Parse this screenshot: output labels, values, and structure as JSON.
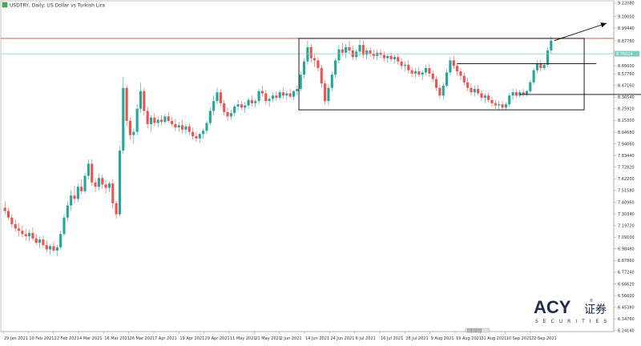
{
  "window": {
    "title": "USDTRY, Daily: US Dollar vs Turkish Lira"
  },
  "logo": {
    "main": "ACY",
    "cn": "证券",
    "sub": "SECURITIES",
    "registered": "®"
  },
  "scrollbar_label": "|||||||||||",
  "colors": {
    "bull": "#26a69a",
    "bear": "#ef5350",
    "resistance": "#e53935",
    "current_price": "#80cbc4",
    "box": "#000000"
  },
  "chart_data": {
    "type": "candlestick",
    "title": "USDTRY, Daily: US Dollar vs Turkish Lira",
    "x_tick_labels": [
      "29 Jan 2021",
      "10 Feb 2021",
      "22 Feb 2021",
      "4 Mar 2021",
      "16 Mar 2021",
      "26 Mar 2021",
      "7 Apr 2021",
      "19 Apr 2021",
      "29 Apr 2021",
      "11 May 2021",
      "21 May 2021",
      "2 Jun 2021",
      "14 Jun 2021",
      "24 Jun 2021",
      "6 Jul 2021",
      "16 Jul 2021",
      "28 Jul 2021",
      "9 Aug 2021",
      "19 Aug 2021",
      "31 Aug 2021",
      "10 Sep 2021",
      "22 Sep 2021"
    ],
    "y_tick_labels": [
      "9.22080",
      "9.10000",
      "8.99440",
      "8.87780",
      "8.76024",
      "8.65000",
      "8.57760",
      "8.47160",
      "8.36540",
      "8.25920",
      "8.15300",
      "8.04680",
      "7.94060",
      "7.83440",
      "7.72820",
      "7.62200",
      "7.51580",
      "7.40960",
      "7.30340",
      "7.19720",
      "7.09100",
      "6.98480",
      "6.87860",
      "6.77240",
      "6.66620",
      "6.56000",
      "6.45380",
      "6.34760",
      "6.24140"
    ],
    "ylim": [
      6.24,
      9.22
    ],
    "resistance_level": {
      "label": "8.90000",
      "value": 8.9
    },
    "current_price": {
      "label": "8.76024",
      "value": 8.76
    },
    "range_box": {
      "from_index": 85,
      "to_index": 166,
      "top": 8.9,
      "bottom": 8.25
    },
    "annotation_lines": [
      {
        "from_index": 130,
        "to_index": 170,
        "value": 8.67
      },
      {
        "from_index": 148,
        "to_index": 195,
        "value": 8.39
      }
    ],
    "candles": [
      {
        "o": 7.36,
        "h": 7.42,
        "l": 7.3,
        "c": 7.33
      },
      {
        "o": 7.33,
        "h": 7.36,
        "l": 7.25,
        "c": 7.27
      },
      {
        "o": 7.27,
        "h": 7.3,
        "l": 7.18,
        "c": 7.21
      },
      {
        "o": 7.21,
        "h": 7.25,
        "l": 7.14,
        "c": 7.17
      },
      {
        "o": 7.17,
        "h": 7.22,
        "l": 7.1,
        "c": 7.15
      },
      {
        "o": 7.15,
        "h": 7.2,
        "l": 7.09,
        "c": 7.12
      },
      {
        "o": 7.12,
        "h": 7.17,
        "l": 7.06,
        "c": 7.1
      },
      {
        "o": 7.1,
        "h": 7.16,
        "l": 7.05,
        "c": 7.13
      },
      {
        "o": 7.13,
        "h": 7.18,
        "l": 7.06,
        "c": 7.08
      },
      {
        "o": 7.08,
        "h": 7.12,
        "l": 7.02,
        "c": 7.04
      },
      {
        "o": 7.04,
        "h": 7.1,
        "l": 6.99,
        "c": 7.07
      },
      {
        "o": 7.07,
        "h": 7.11,
        "l": 7.0,
        "c": 7.02
      },
      {
        "o": 7.02,
        "h": 7.06,
        "l": 6.95,
        "c": 6.98
      },
      {
        "o": 6.98,
        "h": 7.03,
        "l": 6.93,
        "c": 7.01
      },
      {
        "o": 7.01,
        "h": 7.05,
        "l": 6.95,
        "c": 6.97
      },
      {
        "o": 6.97,
        "h": 7.02,
        "l": 6.92,
        "c": 7.0
      },
      {
        "o": 7.0,
        "h": 7.15,
        "l": 6.98,
        "c": 7.12
      },
      {
        "o": 7.12,
        "h": 7.3,
        "l": 7.1,
        "c": 7.27
      },
      {
        "o": 7.27,
        "h": 7.42,
        "l": 7.24,
        "c": 7.38
      },
      {
        "o": 7.38,
        "h": 7.52,
        "l": 7.33,
        "c": 7.47
      },
      {
        "o": 7.47,
        "h": 7.56,
        "l": 7.4,
        "c": 7.44
      },
      {
        "o": 7.44,
        "h": 7.58,
        "l": 7.41,
        "c": 7.55
      },
      {
        "o": 7.55,
        "h": 7.62,
        "l": 7.48,
        "c": 7.51
      },
      {
        "o": 7.51,
        "h": 7.68,
        "l": 7.49,
        "c": 7.65
      },
      {
        "o": 7.65,
        "h": 7.8,
        "l": 7.62,
        "c": 7.76
      },
      {
        "o": 7.76,
        "h": 7.8,
        "l": 7.56,
        "c": 7.59
      },
      {
        "o": 7.59,
        "h": 7.63,
        "l": 7.5,
        "c": 7.55
      },
      {
        "o": 7.55,
        "h": 7.67,
        "l": 7.52,
        "c": 7.63
      },
      {
        "o": 7.63,
        "h": 7.66,
        "l": 7.53,
        "c": 7.57
      },
      {
        "o": 7.57,
        "h": 7.61,
        "l": 7.49,
        "c": 7.54
      },
      {
        "o": 7.54,
        "h": 7.6,
        "l": 7.5,
        "c": 7.58
      },
      {
        "o": 7.58,
        "h": 7.62,
        "l": 7.35,
        "c": 7.4
      },
      {
        "o": 7.4,
        "h": 7.42,
        "l": 7.26,
        "c": 7.3
      },
      {
        "o": 7.3,
        "h": 7.92,
        "l": 7.28,
        "c": 7.88
      },
      {
        "o": 7.88,
        "h": 8.55,
        "l": 7.85,
        "c": 8.45
      },
      {
        "o": 8.45,
        "h": 8.48,
        "l": 8.1,
        "c": 8.15
      },
      {
        "o": 8.15,
        "h": 8.18,
        "l": 7.98,
        "c": 8.02
      },
      {
        "o": 8.02,
        "h": 8.08,
        "l": 7.94,
        "c": 8.05
      },
      {
        "o": 8.05,
        "h": 8.3,
        "l": 8.02,
        "c": 8.26
      },
      {
        "o": 8.26,
        "h": 8.5,
        "l": 8.22,
        "c": 8.42
      },
      {
        "o": 8.42,
        "h": 8.45,
        "l": 8.2,
        "c": 8.24
      },
      {
        "o": 8.24,
        "h": 8.28,
        "l": 8.08,
        "c": 8.12
      },
      {
        "o": 8.12,
        "h": 8.2,
        "l": 8.05,
        "c": 8.18
      },
      {
        "o": 8.18,
        "h": 8.22,
        "l": 8.1,
        "c": 8.13
      },
      {
        "o": 8.13,
        "h": 8.19,
        "l": 8.09,
        "c": 8.16
      },
      {
        "o": 8.16,
        "h": 8.2,
        "l": 8.11,
        "c": 8.14
      },
      {
        "o": 8.14,
        "h": 8.21,
        "l": 8.12,
        "c": 8.19
      },
      {
        "o": 8.19,
        "h": 8.23,
        "l": 8.13,
        "c": 8.15
      },
      {
        "o": 8.15,
        "h": 8.18,
        "l": 8.1,
        "c": 8.12
      },
      {
        "o": 8.12,
        "h": 8.17,
        "l": 8.06,
        "c": 8.09
      },
      {
        "o": 8.09,
        "h": 8.14,
        "l": 8.05,
        "c": 8.11
      },
      {
        "o": 8.11,
        "h": 8.16,
        "l": 8.04,
        "c": 8.07
      },
      {
        "o": 8.07,
        "h": 8.12,
        "l": 8.03,
        "c": 8.1
      },
      {
        "o": 8.1,
        "h": 8.13,
        "l": 8.02,
        "c": 8.05
      },
      {
        "o": 8.05,
        "h": 8.09,
        "l": 7.98,
        "c": 8.01
      },
      {
        "o": 8.01,
        "h": 8.05,
        "l": 7.96,
        "c": 7.99
      },
      {
        "o": 7.99,
        "h": 8.04,
        "l": 7.95,
        "c": 8.03
      },
      {
        "o": 8.03,
        "h": 8.08,
        "l": 7.99,
        "c": 8.06
      },
      {
        "o": 8.06,
        "h": 8.15,
        "l": 8.03,
        "c": 8.13
      },
      {
        "o": 8.13,
        "h": 8.27,
        "l": 8.11,
        "c": 8.24
      },
      {
        "o": 8.24,
        "h": 8.38,
        "l": 8.2,
        "c": 8.33
      },
      {
        "o": 8.33,
        "h": 8.45,
        "l": 8.3,
        "c": 8.41
      },
      {
        "o": 8.41,
        "h": 8.44,
        "l": 8.28,
        "c": 8.31
      },
      {
        "o": 8.31,
        "h": 8.34,
        "l": 8.2,
        "c": 8.23
      },
      {
        "o": 8.23,
        "h": 8.27,
        "l": 8.15,
        "c": 8.19
      },
      {
        "o": 8.19,
        "h": 8.25,
        "l": 8.16,
        "c": 8.22
      },
      {
        "o": 8.22,
        "h": 8.3,
        "l": 8.19,
        "c": 8.28
      },
      {
        "o": 8.28,
        "h": 8.34,
        "l": 8.24,
        "c": 8.3
      },
      {
        "o": 8.3,
        "h": 8.33,
        "l": 8.25,
        "c": 8.27
      },
      {
        "o": 8.27,
        "h": 8.32,
        "l": 8.22,
        "c": 8.29
      },
      {
        "o": 8.29,
        "h": 8.36,
        "l": 8.26,
        "c": 8.34
      },
      {
        "o": 8.34,
        "h": 8.38,
        "l": 8.28,
        "c": 8.31
      },
      {
        "o": 8.31,
        "h": 8.35,
        "l": 8.27,
        "c": 8.33
      },
      {
        "o": 8.33,
        "h": 8.44,
        "l": 8.3,
        "c": 8.42
      },
      {
        "o": 8.42,
        "h": 8.47,
        "l": 8.37,
        "c": 8.4
      },
      {
        "o": 8.4,
        "h": 8.43,
        "l": 8.3,
        "c": 8.33
      },
      {
        "o": 8.33,
        "h": 8.37,
        "l": 8.28,
        "c": 8.35
      },
      {
        "o": 8.35,
        "h": 8.41,
        "l": 8.32,
        "c": 8.38
      },
      {
        "o": 8.38,
        "h": 8.42,
        "l": 8.33,
        "c": 8.36
      },
      {
        "o": 8.36,
        "h": 8.43,
        "l": 8.34,
        "c": 8.41
      },
      {
        "o": 8.41,
        "h": 8.45,
        "l": 8.35,
        "c": 8.38
      },
      {
        "o": 8.38,
        "h": 8.42,
        "l": 8.34,
        "c": 8.4
      },
      {
        "o": 8.4,
        "h": 8.44,
        "l": 8.36,
        "c": 8.37
      },
      {
        "o": 8.37,
        "h": 8.43,
        "l": 8.34,
        "c": 8.42
      },
      {
        "o": 8.42,
        "h": 8.47,
        "l": 8.38,
        "c": 8.44
      },
      {
        "o": 8.44,
        "h": 8.6,
        "l": 8.42,
        "c": 8.57
      },
      {
        "o": 8.57,
        "h": 8.72,
        "l": 8.54,
        "c": 8.69
      },
      {
        "o": 8.69,
        "h": 8.88,
        "l": 8.66,
        "c": 8.82
      },
      {
        "o": 8.82,
        "h": 8.85,
        "l": 8.68,
        "c": 8.72
      },
      {
        "o": 8.72,
        "h": 8.76,
        "l": 8.64,
        "c": 8.7
      },
      {
        "o": 8.7,
        "h": 8.73,
        "l": 8.6,
        "c": 8.63
      },
      {
        "o": 8.63,
        "h": 8.66,
        "l": 8.45,
        "c": 8.49
      },
      {
        "o": 8.49,
        "h": 8.52,
        "l": 8.3,
        "c": 8.33
      },
      {
        "o": 8.33,
        "h": 8.48,
        "l": 8.29,
        "c": 8.45
      },
      {
        "o": 8.45,
        "h": 8.6,
        "l": 8.42,
        "c": 8.57
      },
      {
        "o": 8.57,
        "h": 8.72,
        "l": 8.54,
        "c": 8.7
      },
      {
        "o": 8.7,
        "h": 8.84,
        "l": 8.67,
        "c": 8.8
      },
      {
        "o": 8.8,
        "h": 8.86,
        "l": 8.74,
        "c": 8.77
      },
      {
        "o": 8.77,
        "h": 8.85,
        "l": 8.72,
        "c": 8.82
      },
      {
        "o": 8.82,
        "h": 8.88,
        "l": 8.76,
        "c": 8.79
      },
      {
        "o": 8.79,
        "h": 8.83,
        "l": 8.7,
        "c": 8.73
      },
      {
        "o": 8.73,
        "h": 8.8,
        "l": 8.7,
        "c": 8.78
      },
      {
        "o": 8.78,
        "h": 8.89,
        "l": 8.74,
        "c": 8.84
      },
      {
        "o": 8.84,
        "h": 8.88,
        "l": 8.72,
        "c": 8.75
      },
      {
        "o": 8.75,
        "h": 8.81,
        "l": 8.71,
        "c": 8.79
      },
      {
        "o": 8.79,
        "h": 8.82,
        "l": 8.73,
        "c": 8.76
      },
      {
        "o": 8.76,
        "h": 8.8,
        "l": 8.71,
        "c": 8.74
      },
      {
        "o": 8.74,
        "h": 8.79,
        "l": 8.7,
        "c": 8.77
      },
      {
        "o": 8.77,
        "h": 8.8,
        "l": 8.72,
        "c": 8.75
      },
      {
        "o": 8.75,
        "h": 8.78,
        "l": 8.69,
        "c": 8.72
      },
      {
        "o": 8.72,
        "h": 8.76,
        "l": 8.68,
        "c": 8.74
      },
      {
        "o": 8.74,
        "h": 8.77,
        "l": 8.69,
        "c": 8.71
      },
      {
        "o": 8.71,
        "h": 8.75,
        "l": 8.67,
        "c": 8.73
      },
      {
        "o": 8.73,
        "h": 8.76,
        "l": 8.66,
        "c": 8.69
      },
      {
        "o": 8.69,
        "h": 8.72,
        "l": 8.62,
        "c": 8.65
      },
      {
        "o": 8.65,
        "h": 8.69,
        "l": 8.6,
        "c": 8.66
      },
      {
        "o": 8.66,
        "h": 8.7,
        "l": 8.58,
        "c": 8.61
      },
      {
        "o": 8.61,
        "h": 8.64,
        "l": 8.55,
        "c": 8.58
      },
      {
        "o": 8.58,
        "h": 8.63,
        "l": 8.54,
        "c": 8.6
      },
      {
        "o": 8.6,
        "h": 8.64,
        "l": 8.55,
        "c": 8.57
      },
      {
        "o": 8.57,
        "h": 8.61,
        "l": 8.52,
        "c": 8.59
      },
      {
        "o": 8.59,
        "h": 8.66,
        "l": 8.56,
        "c": 8.63
      },
      {
        "o": 8.63,
        "h": 8.67,
        "l": 8.55,
        "c": 8.58
      },
      {
        "o": 8.58,
        "h": 8.61,
        "l": 8.5,
        "c": 8.53
      },
      {
        "o": 8.53,
        "h": 8.56,
        "l": 8.42,
        "c": 8.45
      },
      {
        "o": 8.45,
        "h": 8.48,
        "l": 8.35,
        "c": 8.38
      },
      {
        "o": 8.38,
        "h": 8.5,
        "l": 8.34,
        "c": 8.47
      },
      {
        "o": 8.47,
        "h": 8.62,
        "l": 8.45,
        "c": 8.59
      },
      {
        "o": 8.59,
        "h": 8.73,
        "l": 8.56,
        "c": 8.7
      },
      {
        "o": 8.7,
        "h": 8.74,
        "l": 8.62,
        "c": 8.65
      },
      {
        "o": 8.65,
        "h": 8.68,
        "l": 8.56,
        "c": 8.6
      },
      {
        "o": 8.6,
        "h": 8.63,
        "l": 8.52,
        "c": 8.56
      },
      {
        "o": 8.56,
        "h": 8.59,
        "l": 8.47,
        "c": 8.5
      },
      {
        "o": 8.5,
        "h": 8.54,
        "l": 8.42,
        "c": 8.45
      },
      {
        "o": 8.45,
        "h": 8.49,
        "l": 8.38,
        "c": 8.41
      },
      {
        "o": 8.41,
        "h": 8.47,
        "l": 8.37,
        "c": 8.44
      },
      {
        "o": 8.44,
        "h": 8.48,
        "l": 8.38,
        "c": 8.4
      },
      {
        "o": 8.4,
        "h": 8.43,
        "l": 8.33,
        "c": 8.36
      },
      {
        "o": 8.36,
        "h": 8.4,
        "l": 8.31,
        "c": 8.38
      },
      {
        "o": 8.38,
        "h": 8.41,
        "l": 8.32,
        "c": 8.34
      },
      {
        "o": 8.34,
        "h": 8.37,
        "l": 8.28,
        "c": 8.31
      },
      {
        "o": 8.31,
        "h": 8.34,
        "l": 8.26,
        "c": 8.29
      },
      {
        "o": 8.29,
        "h": 8.33,
        "l": 8.25,
        "c": 8.3
      },
      {
        "o": 8.3,
        "h": 8.33,
        "l": 8.25,
        "c": 8.27
      },
      {
        "o": 8.27,
        "h": 8.32,
        "l": 8.25,
        "c": 8.3
      },
      {
        "o": 8.3,
        "h": 8.4,
        "l": 8.28,
        "c": 8.38
      },
      {
        "o": 8.38,
        "h": 8.44,
        "l": 8.34,
        "c": 8.41
      },
      {
        "o": 8.41,
        "h": 8.44,
        "l": 8.36,
        "c": 8.38
      },
      {
        "o": 8.38,
        "h": 8.43,
        "l": 8.36,
        "c": 8.41
      },
      {
        "o": 8.41,
        "h": 8.44,
        "l": 8.37,
        "c": 8.39
      },
      {
        "o": 8.39,
        "h": 8.43,
        "l": 8.37,
        "c": 8.42
      },
      {
        "o": 8.42,
        "h": 8.52,
        "l": 8.4,
        "c": 8.5
      },
      {
        "o": 8.5,
        "h": 8.63,
        "l": 8.48,
        "c": 8.61
      },
      {
        "o": 8.61,
        "h": 8.7,
        "l": 8.58,
        "c": 8.67
      },
      {
        "o": 8.67,
        "h": 8.7,
        "l": 8.6,
        "c": 8.63
      },
      {
        "o": 8.63,
        "h": 8.68,
        "l": 8.61,
        "c": 8.66
      },
      {
        "o": 8.66,
        "h": 8.82,
        "l": 8.64,
        "c": 8.79
      },
      {
        "o": 8.79,
        "h": 8.92,
        "l": 8.76,
        "c": 8.88
      }
    ]
  }
}
